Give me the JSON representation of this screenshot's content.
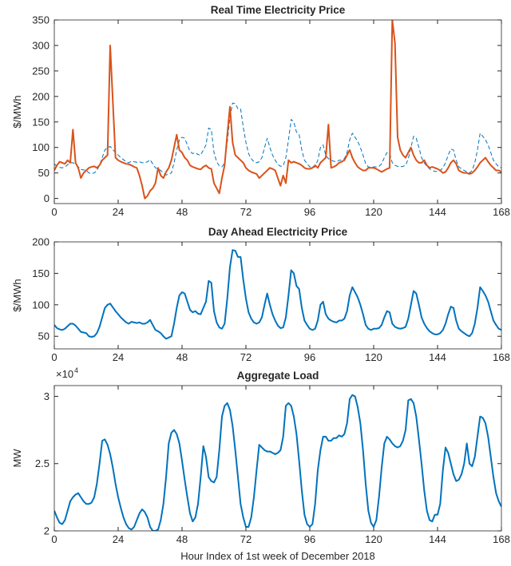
{
  "chart_data": [
    {
      "type": "line",
      "title": "Real Time Electricity Price",
      "ylabel": "$/MWh",
      "x": [
        0,
        1,
        2,
        3,
        4,
        5,
        6,
        7,
        8,
        9,
        10,
        11,
        12,
        13,
        14,
        15,
        16,
        17,
        18,
        19,
        20,
        21,
        22,
        23,
        24,
        25,
        26,
        27,
        28,
        29,
        30,
        31,
        32,
        33,
        34,
        35,
        36,
        37,
        38,
        39,
        40,
        41,
        42,
        43,
        44,
        45,
        46,
        47,
        48,
        49,
        50,
        51,
        52,
        53,
        54,
        55,
        56,
        57,
        58,
        59,
        60,
        61,
        62,
        63,
        64,
        65,
        66,
        67,
        68,
        69,
        70,
        71,
        72,
        73,
        74,
        75,
        76,
        77,
        78,
        79,
        80,
        81,
        82,
        83,
        84,
        85,
        86,
        87,
        88,
        89,
        90,
        91,
        92,
        93,
        94,
        95,
        96,
        97,
        98,
        99,
        100,
        101,
        102,
        103,
        104,
        105,
        106,
        107,
        108,
        109,
        110,
        111,
        112,
        113,
        114,
        115,
        116,
        117,
        118,
        119,
        120,
        121,
        122,
        123,
        124,
        125,
        126,
        127,
        128,
        129,
        130,
        131,
        132,
        133,
        134,
        135,
        136,
        137,
        138,
        139,
        140,
        141,
        142,
        143,
        144,
        145,
        146,
        147,
        148,
        149,
        150,
        151,
        152,
        153,
        154,
        155,
        156,
        157,
        158,
        159,
        160,
        161,
        162,
        163,
        164,
        165,
        166,
        167,
        168
      ],
      "series": [
        {
          "color": "#0072BD",
          "dashed": true,
          "width": 1,
          "values": [
            68,
            63,
            61,
            60,
            62,
            66,
            70,
            70,
            67,
            62,
            57,
            56,
            55,
            50,
            49,
            50,
            55,
            65,
            80,
            95,
            100,
            102,
            96,
            90,
            85,
            80,
            76,
            72,
            70,
            73,
            72,
            71,
            72,
            70,
            70,
            72,
            76,
            68,
            60,
            58,
            55,
            50,
            46,
            48,
            50,
            70,
            95,
            115,
            120,
            118,
            105,
            92,
            88,
            90,
            86,
            85,
            95,
            105,
            138,
            135,
            90,
            72,
            64,
            62,
            70,
            110,
            160,
            187,
            186,
            176,
            176,
            140,
            110,
            88,
            78,
            72,
            70,
            72,
            80,
            100,
            118,
            100,
            85,
            75,
            67,
            63,
            64,
            80,
            115,
            155,
            150,
            130,
            125,
            95,
            75,
            68,
            62,
            60,
            62,
            75,
            100,
            105,
            85,
            78,
            75,
            73,
            72,
            75,
            75,
            78,
            90,
            115,
            128,
            120,
            112,
            100,
            85,
            68,
            62,
            60,
            62,
            62,
            63,
            68,
            80,
            90,
            88,
            70,
            65,
            63,
            62,
            63,
            65,
            78,
            100,
            122,
            118,
            100,
            80,
            70,
            63,
            58,
            55,
            53,
            53,
            55,
            60,
            70,
            85,
            97,
            95,
            75,
            62,
            58,
            55,
            52,
            50,
            55,
            70,
            95,
            128,
            122,
            115,
            105,
            90,
            75,
            68,
            62,
            60
          ]
        },
        {
          "color": "#D95319",
          "dashed": false,
          "width": 2,
          "values": [
            55,
            65,
            72,
            70,
            68,
            75,
            70,
            135,
            70,
            60,
            40,
            50,
            55,
            60,
            62,
            63,
            60,
            65,
            75,
            80,
            85,
            300,
            190,
            80,
            75,
            72,
            70,
            68,
            67,
            65,
            62,
            60,
            45,
            25,
            0,
            5,
            15,
            20,
            30,
            60,
            45,
            40,
            52,
            60,
            75,
            100,
            125,
            95,
            90,
            80,
            75,
            65,
            62,
            60,
            58,
            57,
            62,
            65,
            60,
            58,
            30,
            20,
            10,
            40,
            65,
            125,
            180,
            110,
            85,
            80,
            75,
            70,
            60,
            55,
            52,
            50,
            48,
            40,
            45,
            50,
            55,
            60,
            58,
            55,
            40,
            25,
            45,
            30,
            75,
            70,
            72,
            70,
            68,
            65,
            60,
            58,
            58,
            60,
            65,
            60,
            70,
            75,
            80,
            145,
            60,
            62,
            65,
            70,
            72,
            75,
            85,
            95,
            80,
            70,
            62,
            58,
            55,
            55,
            60,
            60,
            60,
            58,
            55,
            52,
            55,
            58,
            60,
            350,
            305,
            120,
            95,
            85,
            80,
            90,
            100,
            85,
            75,
            70,
            70,
            75,
            65,
            60,
            62,
            60,
            58,
            55,
            50,
            52,
            60,
            70,
            75,
            68,
            55,
            52,
            50,
            50,
            48,
            50,
            55,
            62,
            70,
            75,
            80,
            72,
            65,
            60,
            55,
            55,
            52
          ]
        }
      ],
      "xlim": [
        0,
        168
      ],
      "xticks": [
        0,
        24,
        48,
        72,
        96,
        120,
        144,
        168
      ],
      "ylim": [
        -10,
        350
      ],
      "yticks": [
        0,
        50,
        100,
        150,
        200,
        250,
        300,
        350
      ]
    },
    {
      "type": "line",
      "title": "Day Ahead Electricity Price",
      "ylabel": "$/MWh",
      "x": [
        0,
        1,
        2,
        3,
        4,
        5,
        6,
        7,
        8,
        9,
        10,
        11,
        12,
        13,
        14,
        15,
        16,
        17,
        18,
        19,
        20,
        21,
        22,
        23,
        24,
        25,
        26,
        27,
        28,
        29,
        30,
        31,
        32,
        33,
        34,
        35,
        36,
        37,
        38,
        39,
        40,
        41,
        42,
        43,
        44,
        45,
        46,
        47,
        48,
        49,
        50,
        51,
        52,
        53,
        54,
        55,
        56,
        57,
        58,
        59,
        60,
        61,
        62,
        63,
        64,
        65,
        66,
        67,
        68,
        69,
        70,
        71,
        72,
        73,
        74,
        75,
        76,
        77,
        78,
        79,
        80,
        81,
        82,
        83,
        84,
        85,
        86,
        87,
        88,
        89,
        90,
        91,
        92,
        93,
        94,
        95,
        96,
        97,
        98,
        99,
        100,
        101,
        102,
        103,
        104,
        105,
        106,
        107,
        108,
        109,
        110,
        111,
        112,
        113,
        114,
        115,
        116,
        117,
        118,
        119,
        120,
        121,
        122,
        123,
        124,
        125,
        126,
        127,
        128,
        129,
        130,
        131,
        132,
        133,
        134,
        135,
        136,
        137,
        138,
        139,
        140,
        141,
        142,
        143,
        144,
        145,
        146,
        147,
        148,
        149,
        150,
        151,
        152,
        153,
        154,
        155,
        156,
        157,
        158,
        159,
        160,
        161,
        162,
        163,
        164,
        165,
        166,
        167,
        168
      ],
      "series": [
        {
          "color": "#0072BD",
          "dashed": false,
          "width": 2,
          "values": [
            68,
            63,
            61,
            60,
            62,
            66,
            70,
            70,
            67,
            62,
            57,
            56,
            55,
            50,
            49,
            50,
            55,
            65,
            80,
            95,
            100,
            102,
            96,
            90,
            85,
            80,
            76,
            72,
            70,
            73,
            72,
            71,
            72,
            70,
            70,
            72,
            76,
            68,
            60,
            58,
            55,
            50,
            46,
            48,
            50,
            70,
            95,
            115,
            120,
            118,
            105,
            92,
            88,
            90,
            86,
            85,
            95,
            105,
            138,
            135,
            90,
            72,
            64,
            62,
            70,
            110,
            160,
            187,
            186,
            176,
            176,
            140,
            110,
            88,
            78,
            72,
            70,
            72,
            80,
            100,
            118,
            100,
            85,
            75,
            67,
            63,
            64,
            80,
            115,
            155,
            150,
            130,
            125,
            95,
            75,
            68,
            62,
            60,
            62,
            75,
            100,
            105,
            85,
            78,
            75,
            73,
            72,
            75,
            75,
            78,
            90,
            115,
            128,
            120,
            112,
            100,
            85,
            68,
            62,
            60,
            62,
            62,
            63,
            68,
            80,
            90,
            88,
            70,
            65,
            63,
            62,
            63,
            65,
            78,
            100,
            122,
            118,
            100,
            80,
            70,
            63,
            58,
            55,
            53,
            53,
            55,
            60,
            70,
            85,
            97,
            95,
            75,
            62,
            58,
            55,
            52,
            50,
            55,
            70,
            95,
            128,
            122,
            115,
            105,
            90,
            75,
            68,
            62,
            60
          ]
        }
      ],
      "xlim": [
        0,
        168
      ],
      "xticks": [
        0,
        24,
        48,
        72,
        96,
        120,
        144,
        168
      ],
      "ylim": [
        30,
        200
      ],
      "yticks": [
        50,
        100,
        150,
        200
      ]
    },
    {
      "type": "line",
      "title": "Aggregate Load",
      "ylabel": "MW",
      "xlabel": "Hour Index of 1st week of December 2018",
      "y_scale_base": "×10",
      "y_scale_power": "4",
      "x": [
        0,
        1,
        2,
        3,
        4,
        5,
        6,
        7,
        8,
        9,
        10,
        11,
        12,
        13,
        14,
        15,
        16,
        17,
        18,
        19,
        20,
        21,
        22,
        23,
        24,
        25,
        26,
        27,
        28,
        29,
        30,
        31,
        32,
        33,
        34,
        35,
        36,
        37,
        38,
        39,
        40,
        41,
        42,
        43,
        44,
        45,
        46,
        47,
        48,
        49,
        50,
        51,
        52,
        53,
        54,
        55,
        56,
        57,
        58,
        59,
        60,
        61,
        62,
        63,
        64,
        65,
        66,
        67,
        68,
        69,
        70,
        71,
        72,
        73,
        74,
        75,
        76,
        77,
        78,
        79,
        80,
        81,
        82,
        83,
        84,
        85,
        86,
        87,
        88,
        89,
        90,
        91,
        92,
        93,
        94,
        95,
        96,
        97,
        98,
        99,
        100,
        101,
        102,
        103,
        104,
        105,
        106,
        107,
        108,
        109,
        110,
        111,
        112,
        113,
        114,
        115,
        116,
        117,
        118,
        119,
        120,
        121,
        122,
        123,
        124,
        125,
        126,
        127,
        128,
        129,
        130,
        131,
        132,
        133,
        134,
        135,
        136,
        137,
        138,
        139,
        140,
        141,
        142,
        143,
        144,
        145,
        146,
        147,
        148,
        149,
        150,
        151,
        152,
        153,
        154,
        155,
        156,
        157,
        158,
        159,
        160,
        161,
        162,
        163,
        164,
        165,
        166,
        167,
        168
      ],
      "series": [
        {
          "color": "#0072BD",
          "dashed": false,
          "width": 2,
          "values": [
            2.15,
            2.1,
            2.06,
            2.05,
            2.08,
            2.15,
            2.22,
            2.25,
            2.27,
            2.28,
            2.25,
            2.22,
            2.2,
            2.2,
            2.21,
            2.25,
            2.35,
            2.5,
            2.67,
            2.68,
            2.64,
            2.57,
            2.47,
            2.35,
            2.25,
            2.17,
            2.1,
            2.05,
            2.02,
            2.01,
            2.03,
            2.08,
            2.13,
            2.16,
            2.14,
            2.1,
            2.03,
            2.0,
            2.0,
            2.01,
            2.08,
            2.2,
            2.4,
            2.65,
            2.73,
            2.75,
            2.72,
            2.65,
            2.52,
            2.38,
            2.25,
            2.13,
            2.07,
            2.1,
            2.2,
            2.4,
            2.63,
            2.55,
            2.4,
            2.37,
            2.36,
            2.4,
            2.6,
            2.85,
            2.93,
            2.95,
            2.9,
            2.78,
            2.6,
            2.4,
            2.2,
            2.1,
            2.03,
            2.03,
            2.1,
            2.25,
            2.45,
            2.64,
            2.62,
            2.6,
            2.59,
            2.59,
            2.58,
            2.57,
            2.58,
            2.6,
            2.7,
            2.93,
            2.95,
            2.93,
            2.85,
            2.72,
            2.52,
            2.3,
            2.12,
            2.05,
            2.03,
            2.05,
            2.2,
            2.45,
            2.6,
            2.7,
            2.7,
            2.67,
            2.67,
            2.69,
            2.69,
            2.71,
            2.7,
            2.72,
            2.8,
            2.98,
            3.01,
            3.0,
            2.92,
            2.8,
            2.6,
            2.35,
            2.15,
            2.06,
            2.03,
            2.08,
            2.25,
            2.47,
            2.65,
            2.7,
            2.68,
            2.65,
            2.63,
            2.62,
            2.63,
            2.67,
            2.75,
            2.97,
            2.98,
            2.95,
            2.85,
            2.68,
            2.5,
            2.3,
            2.15,
            2.08,
            2.07,
            2.12,
            2.12,
            2.2,
            2.45,
            2.62,
            2.58,
            2.5,
            2.42,
            2.37,
            2.38,
            2.42,
            2.5,
            2.65,
            2.5,
            2.48,
            2.55,
            2.7,
            2.85,
            2.84,
            2.8,
            2.7,
            2.55,
            2.4,
            2.28,
            2.22,
            2.18
          ]
        }
      ],
      "xlim": [
        0,
        168
      ],
      "xticks": [
        0,
        24,
        48,
        72,
        96,
        120,
        144,
        168
      ],
      "ylim": [
        2,
        3.08
      ],
      "yticks": [
        2,
        2.5,
        3
      ]
    }
  ]
}
